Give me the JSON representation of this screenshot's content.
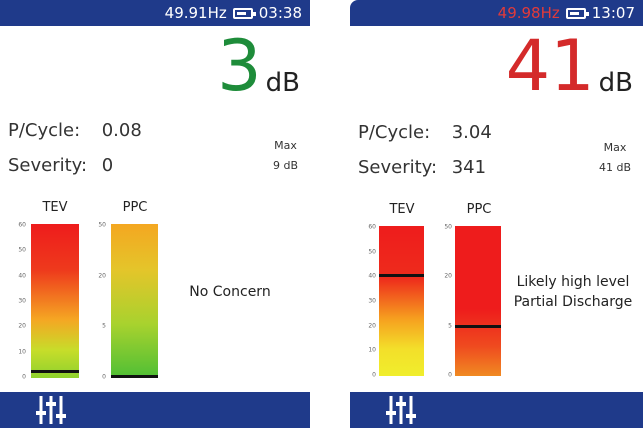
{
  "screens": [
    {
      "frequency": "49.91Hz",
      "frequency_color": "#ffffff",
      "time": "03:38",
      "reading": "3",
      "reading_unit": "dB",
      "reading_color": "#1e8c3a",
      "p_cycle_label": "P/Cycle:",
      "p_cycle": "0.08",
      "severity_label": "Severity:",
      "severity": "0",
      "max_label": "Max",
      "max_value": "9 dB",
      "tev": {
        "label": "TEV",
        "ticks": [
          "60",
          "50",
          "40",
          "30",
          "20",
          "10",
          "0"
        ],
        "max": 60,
        "value": 3,
        "gradient": "linear-gradient(to bottom,#ee1c1c 0%,#ee3a1c 30%,#f5a623 62%,#c7dd2a 82%,#8fd12e 100%)"
      },
      "ppc": {
        "label": "PPC",
        "ticks": [
          "50",
          "20",
          "5",
          "0"
        ],
        "tick_fractions": [
          1,
          0.6667,
          0.3333,
          0
        ],
        "value_fraction": 0,
        "gradient": "linear-gradient(to bottom,#f4a721 0%,#e4c52a 30%,#a8d22e 65%,#4fbf35 100%)"
      },
      "message": [
        "No Concern"
      ]
    },
    {
      "frequency": "49.98Hz",
      "frequency_color": "#e23a3a",
      "time": "13:07",
      "reading": "41",
      "reading_unit": "dB",
      "reading_color": "#d42a2a",
      "p_cycle_label": "P/Cycle:",
      "p_cycle": "3.04",
      "severity_label": "Severity:",
      "severity": "341",
      "max_label": "Max",
      "max_value": "41 dB",
      "tev": {
        "label": "TEV",
        "ticks": [
          "60",
          "50",
          "40",
          "30",
          "20",
          "10",
          "0"
        ],
        "max": 60,
        "value": 41,
        "gradient": "linear-gradient(to bottom,#ee1c1c 0%,#ee2c1c 35%,#f6a01f 62%,#f3df2a 82%,#f0ee2c 100%)"
      },
      "ppc": {
        "label": "PPC",
        "ticks": [
          "50",
          "20",
          "5",
          "0"
        ],
        "tick_fractions": [
          1,
          0.6667,
          0.3333,
          0
        ],
        "value_fraction": 0.34,
        "gradient": "linear-gradient(to bottom,#ee1c1c 0%,#ee1c1c 55%,#ef4a1f 80%,#f08a22 100%)"
      },
      "message": [
        "Likely high level",
        "Partial Discharge"
      ]
    }
  ],
  "icons": {
    "battery": "battery-icon",
    "settings": "equalizer-settings-icon"
  }
}
